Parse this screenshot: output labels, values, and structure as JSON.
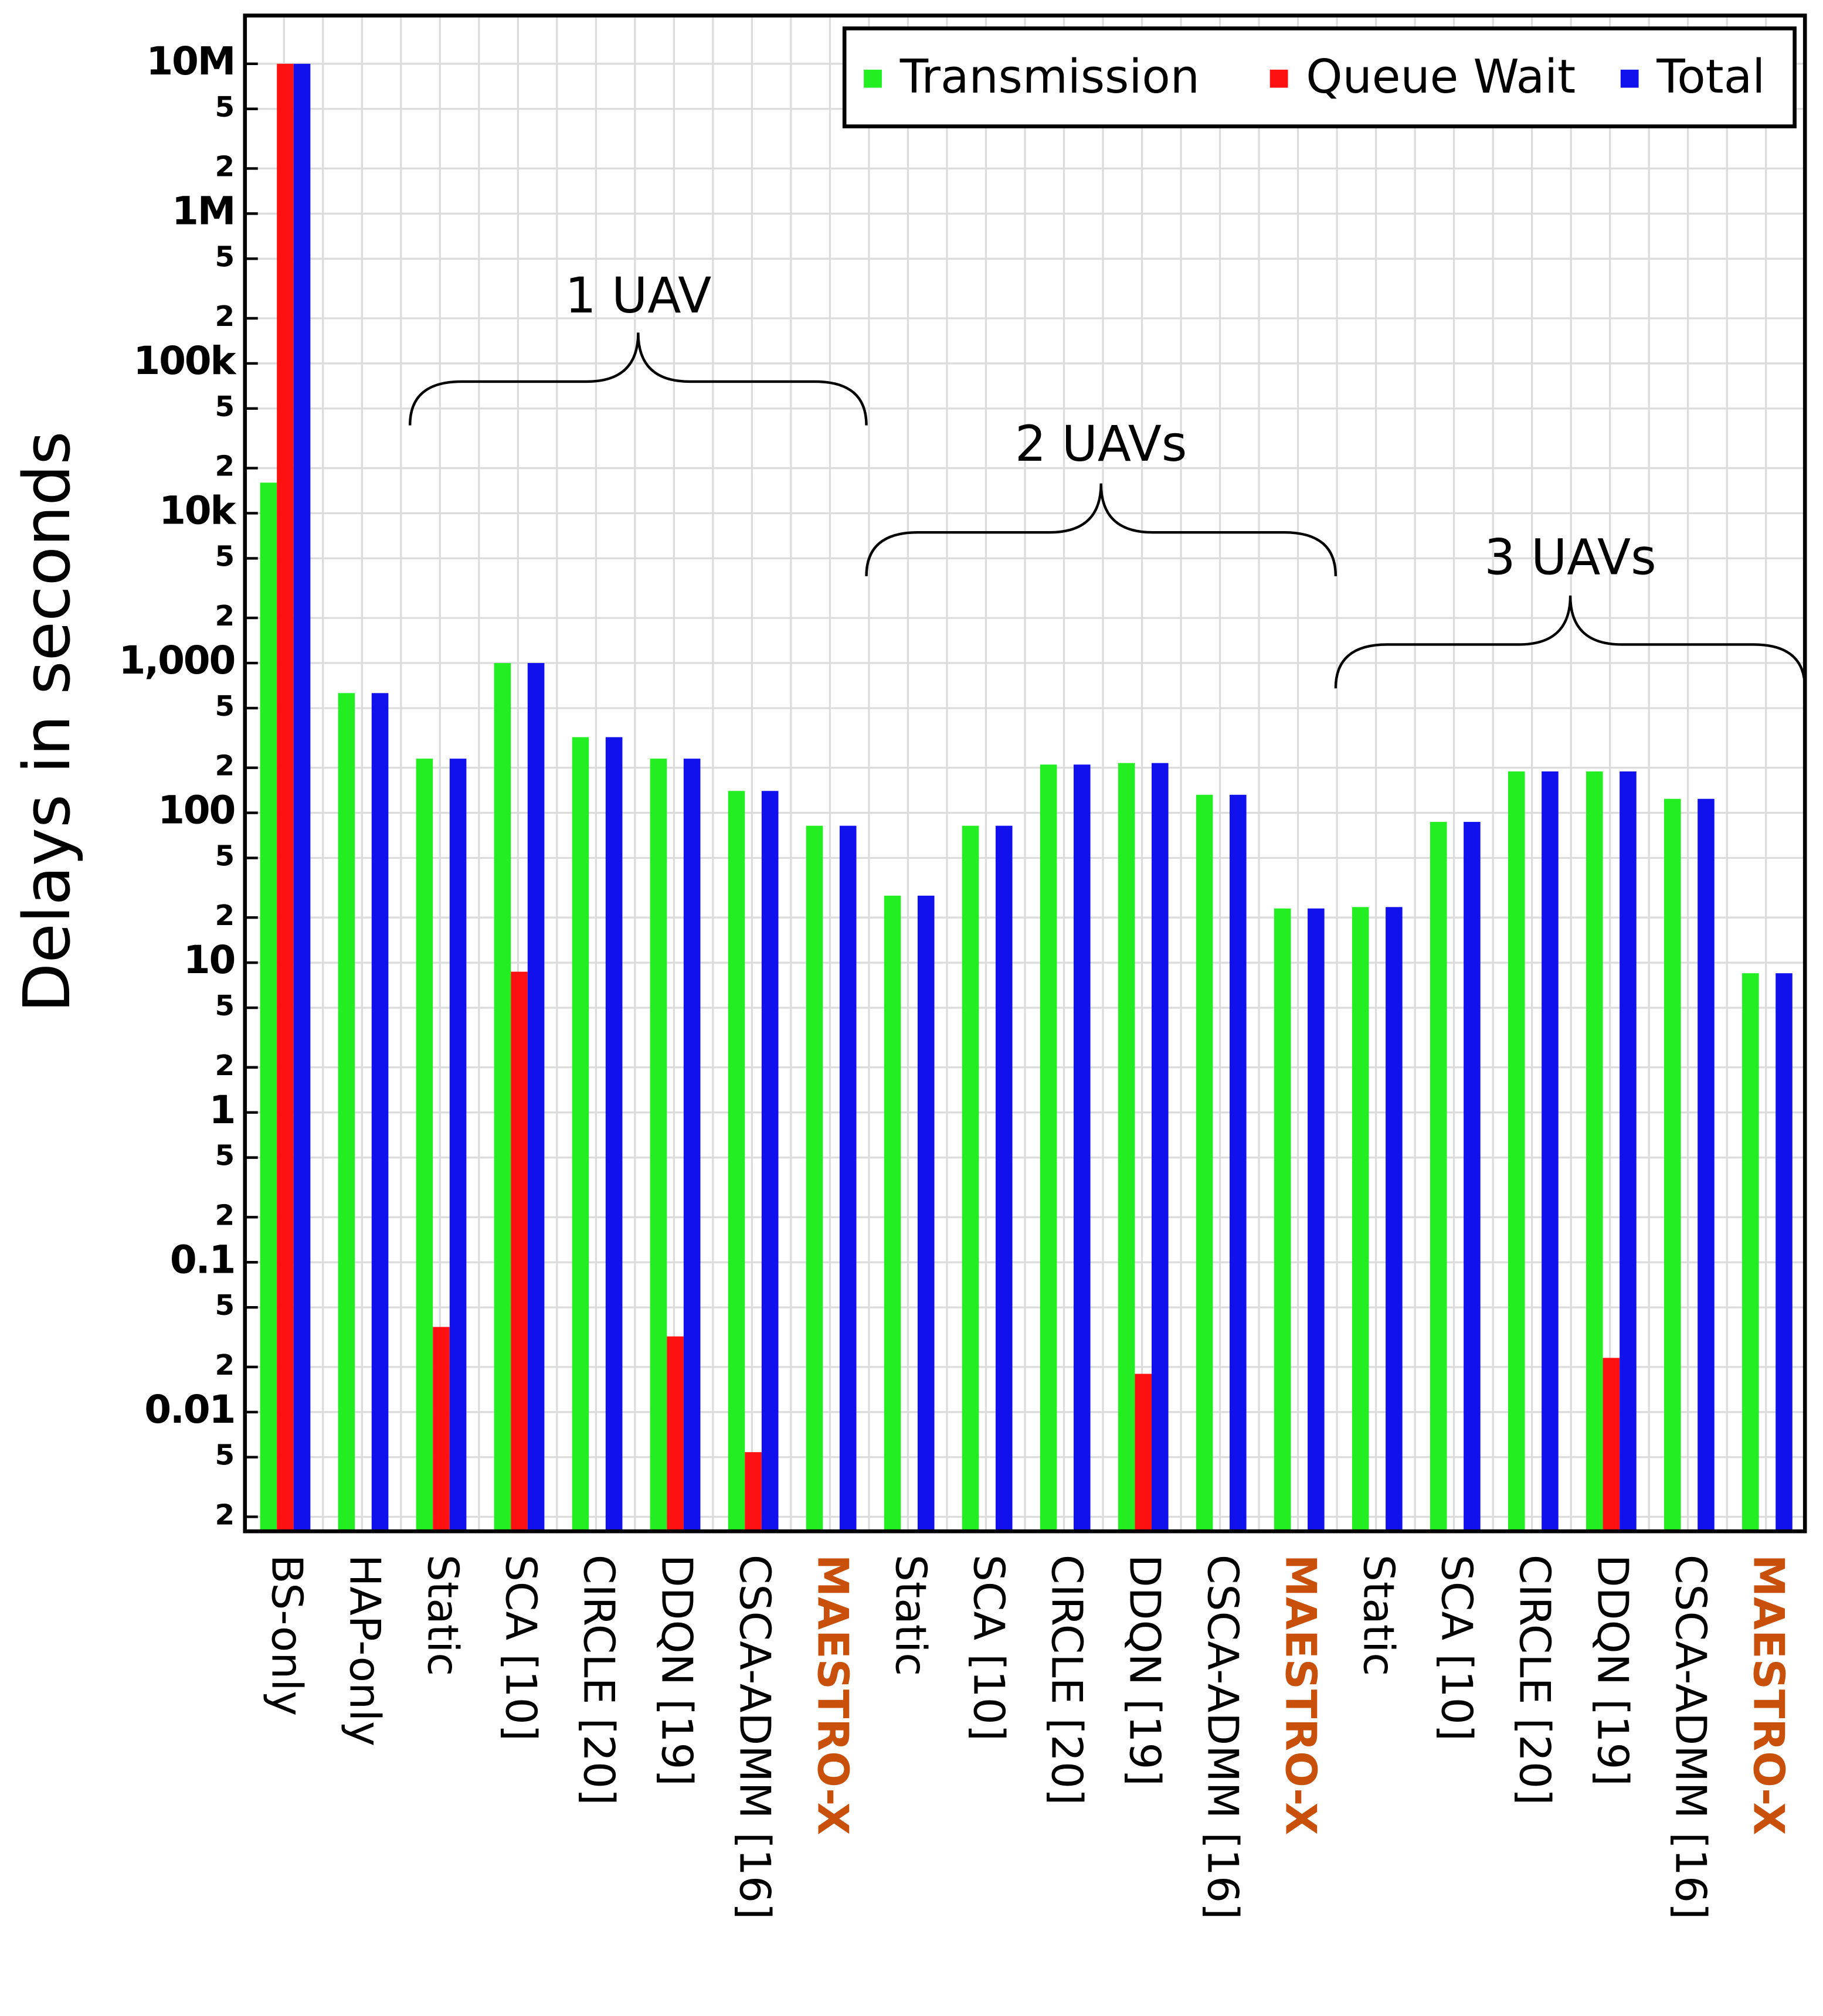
{
  "chart_data": {
    "type": "bar",
    "y_label": "Delays in seconds",
    "log_scale": true,
    "grid": true,
    "legend_position": "upper right",
    "categories": [
      "BS-only",
      "HAP-only",
      "Static",
      "SCA [10]",
      "CIRCLE [20]",
      "DDQN [19]",
      "CSCA-ADMM [16]",
      "MAESTRO-X",
      "Static",
      "SCA [10]",
      "CIRCLE [20]",
      "DDQN [19]",
      "CSCA-ADMM [16]",
      "MAESTRO-X",
      "Static",
      "SCA [10]",
      "CIRCLE [20]",
      "DDQN [19]",
      "CSCA-ADMM [16]",
      "MAESTRO-X"
    ],
    "category_label_colors": [
      "#000000",
      "#000000",
      "#000000",
      "#000000",
      "#000000",
      "#000000",
      "#000000",
      "#c8500a",
      "#000000",
      "#000000",
      "#000000",
      "#000000",
      "#000000",
      "#c8500a",
      "#000000",
      "#000000",
      "#000000",
      "#000000",
      "#000000",
      "#c8500a"
    ],
    "series": [
      {
        "name": "Transmission",
        "color": "#22ee22",
        "values": [
          16000,
          630,
          230,
          1000,
          320,
          230,
          140,
          82,
          28,
          82,
          210,
          215,
          132,
          23,
          23.5,
          87,
          189,
          189,
          124,
          8.5
        ]
      },
      {
        "name": "Queue Wait",
        "color": "#ff1111",
        "values": [
          10000000,
          null,
          0.037,
          8.7,
          null,
          0.032,
          0.0054,
          null,
          null,
          null,
          null,
          0.018,
          null,
          null,
          null,
          null,
          null,
          0.023,
          null,
          null
        ]
      },
      {
        "name": "Total",
        "color": "#1111ee",
        "values": [
          10000000,
          630,
          230,
          1000,
          320,
          230,
          140,
          82,
          28,
          82,
          210,
          215,
          132,
          23,
          23.5,
          87,
          189,
          189,
          124,
          8.5
        ]
      }
    ],
    "annotations": [
      {
        "text": "1 UAV"
      },
      {
        "text": "2 UAVs"
      },
      {
        "text": "3 UAVs"
      }
    ],
    "ylim": [
      0.0016,
      21000000
    ],
    "yticks": [
      {
        "value": 0.002,
        "label": "2"
      },
      {
        "value": 0.005,
        "label": "5"
      },
      0.01,
      {
        "value": 0.02,
        "label": "2"
      },
      {
        "value": 0.05,
        "label": "5"
      },
      0.1,
      {
        "value": 0.2,
        "label": "2"
      },
      {
        "value": 0.5,
        "label": "5"
      },
      1,
      2,
      5,
      10,
      {
        "value": 20,
        "label": "2"
      },
      {
        "value": 50,
        "label": "5"
      },
      100,
      {
        "value": 200,
        "label": "2"
      },
      {
        "value": 500,
        "label": "5"
      },
      {
        "value": 1000,
        "label": "1,000"
      },
      {
        "value": 2000,
        "label": "2"
      },
      {
        "value": 5000,
        "label": "5"
      },
      {
        "value": 10000,
        "label": "10k"
      },
      {
        "value": 20000,
        "label": "2"
      },
      {
        "value": 50000,
        "label": "5"
      },
      {
        "value": 100000,
        "label": "100k"
      },
      {
        "value": 200000,
        "label": "2"
      },
      {
        "value": 500000,
        "label": "5"
      },
      {
        "value": 1000000,
        "label": "1M"
      },
      {
        "value": 2000000,
        "label": "2"
      },
      {
        "value": 5000000,
        "label": "5"
      },
      {
        "value": 10000000,
        "label": "10M"
      }
    ]
  }
}
